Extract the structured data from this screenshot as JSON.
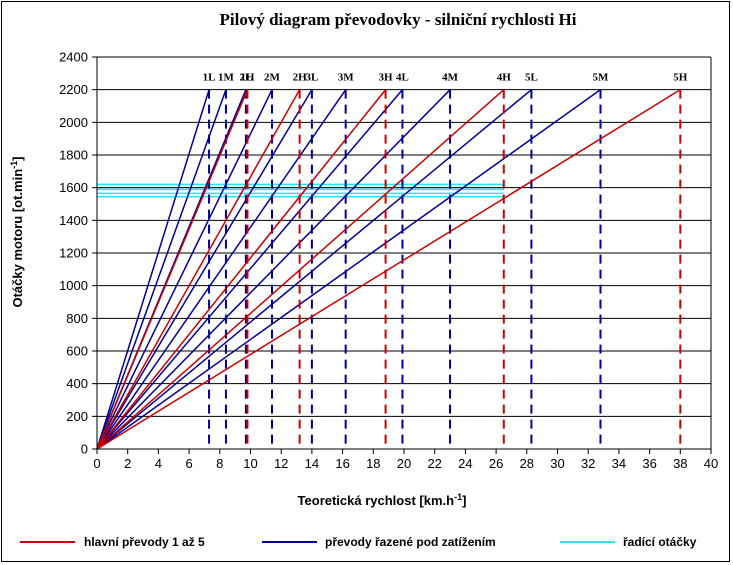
{
  "chart_data": {
    "type": "line",
    "title": "Pilový diagram převodovky - silniční rychlosti  Hi",
    "xlabel": "Teoretická rychlost [km.h",
    "xlabel_sup": "-1",
    "xlabel_end": "]",
    "ylabel": "Otáčky motoru [ot.min",
    "ylabel_sup": "-1",
    "ylabel_end": "]",
    "xlim": [
      0,
      40
    ],
    "ylim": [
      0,
      2400
    ],
    "xticks": [
      0,
      2,
      4,
      6,
      8,
      10,
      12,
      14,
      16,
      18,
      20,
      22,
      24,
      26,
      28,
      30,
      32,
      34,
      36,
      38,
      40
    ],
    "yticks": [
      0,
      200,
      400,
      600,
      800,
      1000,
      1200,
      1400,
      1600,
      1800,
      2000,
      2200,
      2400
    ],
    "grid": "horizontal",
    "max_rpm": 2200,
    "shift_rpm": [
      1620,
      1590,
      1565,
      1545
    ],
    "shift_rpm_xrange": [
      0,
      26.5
    ],
    "gears": [
      {
        "label": "1L",
        "v_max": 7.3,
        "kind": "load"
      },
      {
        "label": "1M",
        "v_max": 8.4,
        "kind": "load"
      },
      {
        "label": "1H",
        "v_max": 9.8,
        "kind": "main"
      },
      {
        "label": "2L",
        "v_max": 9.7,
        "kind": "load"
      },
      {
        "label": "2M",
        "v_max": 11.4,
        "kind": "load"
      },
      {
        "label": "2H",
        "v_max": 13.2,
        "kind": "main"
      },
      {
        "label": "3L",
        "v_max": 14.0,
        "kind": "load"
      },
      {
        "label": "3M",
        "v_max": 16.2,
        "kind": "load"
      },
      {
        "label": "3H",
        "v_max": 18.8,
        "kind": "main"
      },
      {
        "label": "4L",
        "v_max": 19.9,
        "kind": "load"
      },
      {
        "label": "4M",
        "v_max": 23.0,
        "kind": "load"
      },
      {
        "label": "4H",
        "v_max": 26.5,
        "kind": "main"
      },
      {
        "label": "5L",
        "v_max": 28.3,
        "kind": "load"
      },
      {
        "label": "5M",
        "v_max": 32.8,
        "kind": "load"
      },
      {
        "label": "5H",
        "v_max": 38.0,
        "kind": "main"
      }
    ],
    "colors": {
      "main": "#cc0000",
      "load": "#000099",
      "shift": "#33e0f0",
      "grid": "#000000"
    }
  },
  "legend": [
    {
      "label": "hlavní převody 1 až 5",
      "color": "#cc0000"
    },
    {
      "label": "převody řazené pod zatížením",
      "color": "#000099"
    },
    {
      "label": "řadící otáčky",
      "color": "#33e0f0"
    }
  ]
}
